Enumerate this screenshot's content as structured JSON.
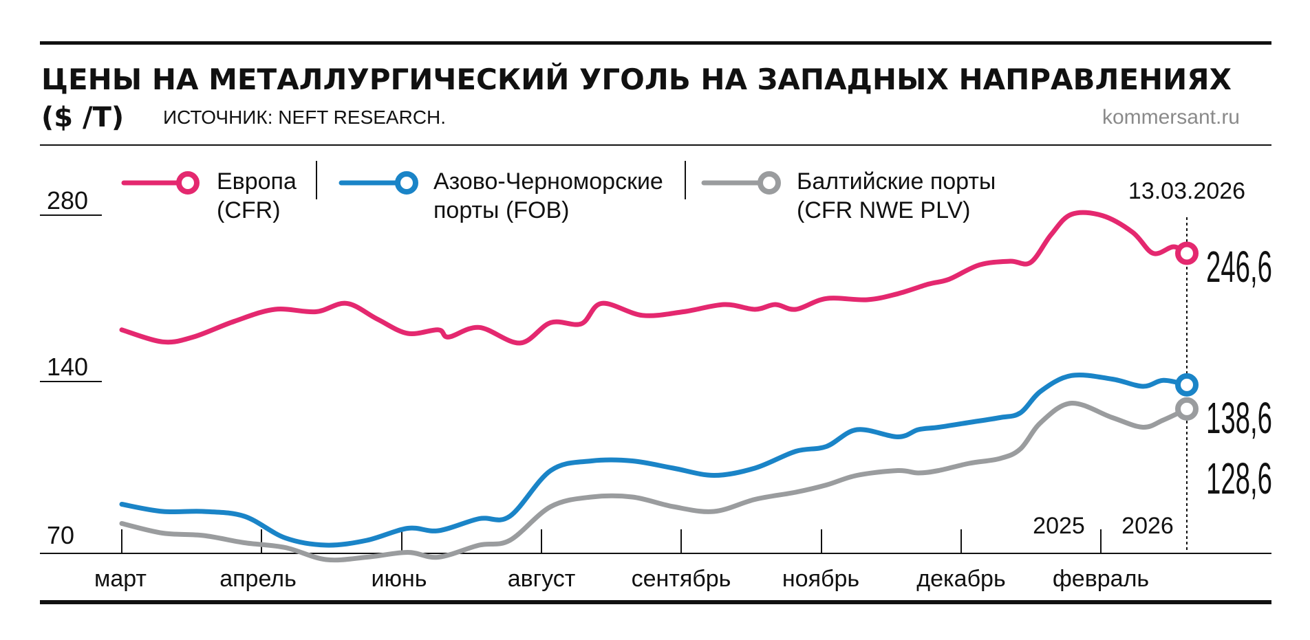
{
  "header": {
    "title_line1": "ЦЕНЫ НА МЕТАЛЛУРГИЧЕСКИЙ УГОЛЬ НА ЗАПАДНЫХ НАПРАВЛЕНИЯХ",
    "title_unit": "($ /Т)",
    "source": "ИСТОЧНИК: NEFT RESEARCH.",
    "site": "kommersant.ru"
  },
  "colors": {
    "europe": "#e4286f",
    "azov": "#1a84c7",
    "baltic": "#9a9c9e",
    "text": "#111111",
    "muted": "#8a8a8a"
  },
  "legend": [
    {
      "line1": "Европа",
      "line2": "(CFR)"
    },
    {
      "line1": "Азово-Черноморские",
      "line2": "порты (FOB)"
    },
    {
      "line1": "Балтийские порты",
      "line2": "(CFR NWE PLV)"
    }
  ],
  "chart_data": {
    "type": "line",
    "title": "ЦЕНЫ НА МЕТАЛЛУРГИЧЕСКИЙ УГОЛЬ НА ЗАПАДНЫХ НАПРАВЛЕНИЯХ ($ /Т)",
    "y_ticks": [
      {
        "value": 280,
        "label": "280"
      },
      {
        "value": 140,
        "label": "140"
      },
      {
        "value": 70,
        "label": "70"
      }
    ],
    "y_axis_break": true,
    "x_labels": [
      "март",
      "апрель",
      "июнь",
      "август",
      "сентябрь",
      "ноябрь",
      "декабрь",
      "февраль"
    ],
    "year_labels": [
      "2025",
      "2026"
    ],
    "last_date": "13.03.2026",
    "end_labels": [
      "246,6",
      "138,6",
      "128,6"
    ],
    "x_range": [
      0,
      100
    ],
    "legend_position": "top-left",
    "series": [
      {
        "name": "Европа (CFR)",
        "color": "#e4286f",
        "points": [
          [
            0,
            183
          ],
          [
            4,
            173
          ],
          [
            7,
            177
          ],
          [
            11,
            190
          ],
          [
            15,
            200
          ],
          [
            19,
            198
          ],
          [
            22,
            205
          ],
          [
            25,
            192
          ],
          [
            28,
            180
          ],
          [
            31,
            183
          ],
          [
            32,
            177
          ],
          [
            35,
            185
          ],
          [
            39,
            172
          ],
          [
            42,
            189
          ],
          [
            45,
            188
          ],
          [
            47,
            205
          ],
          [
            51,
            195
          ],
          [
            55,
            198
          ],
          [
            59,
            204
          ],
          [
            62,
            200
          ],
          [
            64,
            204
          ],
          [
            66,
            200
          ],
          [
            69,
            209
          ],
          [
            73,
            208
          ],
          [
            76,
            213
          ],
          [
            79,
            221
          ],
          [
            81,
            225
          ],
          [
            84,
            237
          ],
          [
            87,
            240
          ],
          [
            89,
            239
          ],
          [
            91,
            262
          ],
          [
            93,
            279
          ],
          [
            96,
            278
          ],
          [
            99,
            264
          ],
          [
            101,
            246.6
          ],
          [
            103,
            252
          ],
          [
            104.3,
            246.6
          ]
        ]
      },
      {
        "name": "Азово-Черноморские порты (FOB)",
        "color": "#1a84c7",
        "points": [
          [
            0,
            89
          ],
          [
            4,
            86
          ],
          [
            8,
            86
          ],
          [
            12,
            84
          ],
          [
            16,
            75
          ],
          [
            20,
            72
          ],
          [
            24,
            74
          ],
          [
            28,
            79
          ],
          [
            31,
            78
          ],
          [
            35,
            83
          ],
          [
            38,
            84
          ],
          [
            42,
            103
          ],
          [
            46,
            107
          ],
          [
            50,
            107
          ],
          [
            54,
            104
          ],
          [
            58,
            101
          ],
          [
            62,
            104
          ],
          [
            66,
            111
          ],
          [
            69,
            113
          ],
          [
            72,
            120
          ],
          [
            76,
            117
          ],
          [
            78,
            120
          ],
          [
            80,
            121
          ],
          [
            83,
            123
          ],
          [
            86,
            125
          ],
          [
            88,
            127
          ],
          [
            90,
            136
          ],
          [
            93,
            145
          ],
          [
            97,
            142
          ],
          [
            100,
            138
          ],
          [
            102,
            141
          ],
          [
            104.3,
            138.6
          ]
        ]
      },
      {
        "name": "Балтийские порты (CFR NWE PLV)",
        "color": "#9a9c9e",
        "points": [
          [
            0,
            81
          ],
          [
            4,
            77
          ],
          [
            8,
            76
          ],
          [
            12,
            73
          ],
          [
            16,
            71
          ],
          [
            20,
            66
          ],
          [
            24,
            67
          ],
          [
            28,
            69
          ],
          [
            31,
            67
          ],
          [
            35,
            72
          ],
          [
            38,
            74
          ],
          [
            42,
            88
          ],
          [
            46,
            92
          ],
          [
            50,
            92
          ],
          [
            54,
            88
          ],
          [
            58,
            86
          ],
          [
            62,
            91
          ],
          [
            66,
            94
          ],
          [
            69,
            97
          ],
          [
            72,
            101
          ],
          [
            76,
            103
          ],
          [
            78,
            102
          ],
          [
            80,
            103
          ],
          [
            83,
            106
          ],
          [
            86,
            108
          ],
          [
            88,
            112
          ],
          [
            90,
            123
          ],
          [
            93,
            131
          ],
          [
            97,
            125
          ],
          [
            100,
            121
          ],
          [
            102,
            124
          ],
          [
            104.3,
            128.6
          ]
        ]
      }
    ]
  }
}
